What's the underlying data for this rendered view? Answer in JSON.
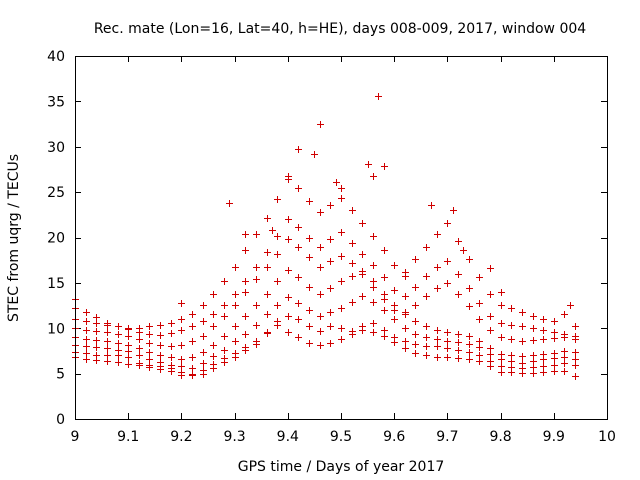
{
  "chart_data": {
    "type": "scatter",
    "title": "Rec. mate (Lon=16, Lat=40, h=HE), days 008-009, 2017, window 004",
    "xlabel": "GPS time / Days of year 2017",
    "ylabel": "STEC from uqrg / TECUs",
    "xlim": [
      9,
      10
    ],
    "ylim": [
      0,
      40
    ],
    "xticks": [
      9,
      9.1,
      9.2,
      9.3,
      9.4,
      9.5,
      9.6,
      9.7,
      9.8,
      9.9,
      10
    ],
    "xtick_labels": [
      "9",
      "9.1",
      "9.2",
      "9.3",
      "9.4",
      "9.5",
      "9.6",
      "9.7",
      "9.8",
      "9.9",
      "10"
    ],
    "yticks": [
      0,
      5,
      10,
      15,
      20,
      25,
      30,
      35,
      40
    ],
    "ytick_labels": [
      "0",
      "5",
      "10",
      "15",
      "20",
      "25",
      "30",
      "35",
      "40"
    ],
    "grid": false,
    "marker": "+",
    "color": "#d00000",
    "series": [
      {
        "name": "s1",
        "x": [
          9.0,
          9.02,
          9.04,
          9.06,
          9.08,
          9.1,
          9.12,
          9.14,
          9.16,
          9.18,
          9.2,
          9.22,
          9.24,
          9.26,
          9.28,
          9.3,
          9.32,
          9.34,
          9.36,
          9.38,
          9.4,
          9.42,
          9.44,
          9.46,
          9.48,
          9.5,
          9.52,
          9.54,
          9.56,
          9.58,
          9.6,
          9.62,
          9.64,
          9.66,
          9.68,
          9.7,
          9.72,
          9.74,
          9.76,
          9.78,
          9.8,
          9.82,
          9.84,
          9.86,
          9.88,
          9.9,
          9.92,
          9.94
        ],
        "y": [
          6.8,
          6.6,
          6.5,
          6.4,
          6.3,
          6.1,
          5.9,
          5.7,
          5.5,
          5.3,
          4.9,
          4.8,
          5.0,
          5.6,
          6.3,
          6.8,
          7.6,
          8.3,
          9.5,
          10.8,
          11.4,
          11.0,
          10.3,
          9.7,
          10.2,
          10.0,
          9.7,
          9.8,
          9.6,
          9.1,
          8.5,
          7.8,
          7.3,
          7.1,
          6.8,
          6.8,
          6.7,
          6.6,
          6.4,
          5.8,
          5.2,
          5.2,
          5.1,
          5.1,
          5.2,
          5.3,
          5.3,
          4.7
        ]
      },
      {
        "name": "s2",
        "x": [
          9.0,
          9.02,
          9.04,
          9.06,
          9.08,
          9.1,
          9.12,
          9.14,
          9.16,
          9.18,
          9.2,
          9.22,
          9.24,
          9.26,
          9.28,
          9.3,
          9.32,
          9.34,
          9.36,
          9.38,
          9.4,
          9.42,
          9.44,
          9.46,
          9.48,
          9.5,
          9.52,
          9.54,
          9.56,
          9.58,
          9.6,
          9.62,
          9.64,
          9.66,
          9.68,
          9.7,
          9.72,
          9.74,
          9.76,
          9.78,
          9.8,
          9.82,
          9.84,
          9.86,
          9.88,
          9.9,
          9.92,
          9.94
        ],
        "y": [
          7.4,
          7.3,
          7.1,
          7.0,
          7.0,
          6.8,
          6.2,
          6.0,
          5.8,
          5.6,
          5.2,
          5.0,
          5.4,
          6.1,
          6.7,
          7.3,
          7.9,
          8.6,
          9.6,
          10.4,
          9.6,
          9.0,
          8.4,
          8.2,
          8.4,
          8.8,
          9.4,
          10.2,
          10.6,
          9.8,
          9.0,
          8.6,
          8.3,
          8.0,
          8.0,
          7.8,
          7.6,
          7.4,
          7.0,
          6.4,
          5.8,
          5.7,
          5.6,
          5.7,
          5.8,
          6.0,
          6.2,
          6.0
        ]
      },
      {
        "name": "s3",
        "x": [
          9.0,
          9.02,
          9.04,
          9.06,
          9.08,
          9.1,
          9.12,
          9.14,
          9.16,
          9.18,
          9.2,
          9.22,
          9.24,
          9.26,
          9.28,
          9.3,
          9.32,
          9.34,
          9.36,
          9.38,
          9.4,
          9.42,
          9.44,
          9.46,
          9.48,
          9.5,
          9.52,
          9.54,
          9.56,
          9.58,
          9.6,
          9.62,
          9.64,
          9.66,
          9.68,
          9.7,
          9.72,
          9.74,
          9.76,
          9.78,
          9.8,
          9.82,
          9.84,
          9.86,
          9.88,
          9.9,
          9.92,
          9.94
        ],
        "y": [
          8.2,
          8.0,
          7.9,
          7.8,
          7.6,
          7.5,
          7.0,
          6.6,
          6.3,
          6.0,
          5.8,
          5.6,
          6.2,
          6.9,
          7.6,
          8.6,
          9.4,
          10.4,
          11.6,
          12.6,
          13.4,
          12.8,
          12.0,
          11.4,
          11.8,
          12.2,
          12.9,
          13.6,
          12.9,
          12.0,
          11.0,
          10.0,
          9.4,
          9.0,
          8.8,
          8.6,
          8.5,
          8.3,
          7.9,
          7.2,
          6.6,
          6.4,
          6.2,
          6.4,
          6.6,
          6.7,
          6.8,
          6.6
        ]
      },
      {
        "name": "s4",
        "x": [
          9.0,
          9.02,
          9.04,
          9.06,
          9.08,
          9.1,
          9.12,
          9.14,
          9.16,
          9.18,
          9.2,
          9.22,
          9.24,
          9.26,
          9.28,
          9.3,
          9.32,
          9.34,
          9.36,
          9.38,
          9.4,
          9.42,
          9.44,
          9.46,
          9.48,
          9.5,
          9.52,
          9.54,
          9.56,
          9.58,
          9.6,
          9.62,
          9.64,
          9.66,
          9.68,
          9.7,
          9.72,
          9.74,
          9.76,
          9.78,
          9.8,
          9.82,
          9.84,
          9.86,
          9.88,
          9.9,
          9.92,
          9.94
        ],
        "y": [
          9.0,
          8.8,
          8.7,
          8.6,
          8.4,
          8.1,
          7.8,
          7.4,
          7.0,
          6.8,
          6.6,
          6.8,
          7.4,
          8.2,
          9.2,
          10.2,
          11.4,
          12.6,
          13.8,
          15.2,
          16.4,
          15.6,
          14.6,
          13.8,
          14.4,
          15.2,
          15.8,
          16.3,
          15.2,
          13.8,
          12.6,
          11.6,
          10.8,
          10.2,
          9.8,
          9.6,
          9.4,
          9.1,
          8.6,
          7.8,
          7.2,
          7.0,
          6.9,
          7.0,
          7.2,
          7.3,
          7.5,
          7.4
        ]
      },
      {
        "name": "s5",
        "x": [
          9.0,
          9.02,
          9.04,
          9.06,
          9.08,
          9.1,
          9.12,
          9.14,
          9.16,
          9.18,
          9.2,
          9.22,
          9.24,
          9.26,
          9.28,
          9.3,
          9.32,
          9.34,
          9.36,
          9.38,
          9.4,
          9.42,
          9.44,
          9.46,
          9.48,
          9.5,
          9.52,
          9.54,
          9.56,
          9.58,
          9.6,
          9.62,
          9.64,
          9.66,
          9.68,
          9.7,
          9.72,
          9.74,
          9.76,
          9.78,
          9.8,
          9.82,
          9.84,
          9.86,
          9.88,
          9.9,
          9.92,
          9.94
        ],
        "y": [
          10.0,
          9.8,
          9.7,
          9.6,
          9.4,
          9.1,
          8.8,
          8.4,
          8.1,
          8.0,
          8.2,
          8.6,
          9.2,
          10.2,
          11.4,
          12.6,
          14.0,
          15.4,
          16.8,
          18.2,
          19.8,
          19.0,
          17.8,
          16.8,
          17.4,
          18.0,
          17.2,
          16.0,
          14.6,
          13.2,
          12.0,
          11.8,
          12.6,
          13.6,
          14.4,
          15.0,
          13.8,
          12.4,
          11.0,
          9.8,
          9.0,
          8.8,
          8.6,
          8.7,
          8.8,
          8.9,
          9.0,
          8.8
        ]
      },
      {
        "name": "s6",
        "x": [
          9.0,
          9.02,
          9.04,
          9.06,
          9.08,
          9.1,
          9.12,
          9.14,
          9.16,
          9.18,
          9.2,
          9.22,
          9.24,
          9.26,
          9.28,
          9.3,
          9.32,
          9.34,
          9.36,
          9.38,
          9.4,
          9.42,
          9.44,
          9.46,
          9.48,
          9.5,
          9.52,
          9.54,
          9.56,
          9.58,
          9.6,
          9.62,
          9.64,
          9.66,
          9.68,
          9.7,
          9.72,
          9.74,
          9.76,
          9.78,
          9.8,
          9.82,
          9.84,
          9.86,
          9.88,
          9.9,
          9.92,
          9.94
        ],
        "y": [
          11.0,
          10.8,
          10.6,
          10.4,
          10.2,
          9.9,
          9.6,
          9.4,
          9.3,
          9.5,
          9.8,
          10.2,
          10.8,
          11.6,
          12.6,
          13.8,
          15.2,
          16.8,
          18.4,
          20.2,
          22.0,
          21.2,
          20.0,
          19.0,
          19.8,
          20.6,
          19.4,
          18.2,
          17.0,
          15.6,
          14.2,
          13.6,
          14.6,
          15.8,
          16.8,
          17.4,
          16.0,
          14.4,
          12.8,
          11.4,
          10.6,
          10.4,
          10.2,
          10.0,
          9.8,
          9.6,
          9.4,
          9.2
        ]
      },
      {
        "name": "s7",
        "x": [
          9.0,
          9.02,
          9.04,
          9.06,
          9.08,
          9.1,
          9.12,
          9.14,
          9.16,
          9.18,
          9.2,
          9.22,
          9.24,
          9.26,
          9.28,
          9.3,
          9.32,
          9.34,
          9.36,
          9.38,
          9.4,
          9.42,
          9.44,
          9.46,
          9.48,
          9.5,
          9.52,
          9.54,
          9.56,
          9.58,
          9.6,
          9.62,
          9.64,
          9.66,
          9.68,
          9.7,
          9.72,
          9.74,
          9.76,
          9.78,
          9.8,
          9.82,
          9.84,
          9.86,
          9.88,
          9.9,
          9.92,
          9.94
        ],
        "y": [
          12.2,
          11.8,
          11.2,
          10.6,
          10.2,
          10.0,
          10.0,
          10.2,
          10.4,
          10.6,
          11.0,
          11.6,
          12.6,
          13.8,
          15.2,
          16.8,
          18.6,
          20.4,
          22.2,
          24.2,
          26.4,
          25.4,
          24.0,
          22.8,
          23.6,
          24.4,
          23.0,
          21.6,
          20.2,
          18.6,
          17.0,
          16.2,
          17.6,
          19.0,
          20.4,
          21.6,
          19.6,
          17.6,
          15.6,
          13.8,
          12.6,
          12.2,
          11.8,
          11.4,
          11.0,
          10.8,
          11.6,
          10.2
        ]
      },
      {
        "name": "outliers",
        "x": [
          9.0,
          9.2,
          9.29,
          9.32,
          9.37,
          9.4,
          9.42,
          9.45,
          9.46,
          9.49,
          9.5,
          9.55,
          9.56,
          9.57,
          9.58,
          9.62,
          9.67,
          9.71,
          9.73,
          9.78,
          9.8,
          9.93
        ],
        "y": [
          13.2,
          12.8,
          23.8,
          20.4,
          20.8,
          26.8,
          29.7,
          29.2,
          32.5,
          26.1,
          25.4,
          28.1,
          26.8,
          35.6,
          27.9,
          15.8,
          23.6,
          23.0,
          18.6,
          16.6,
          14.0,
          12.6
        ]
      }
    ]
  }
}
